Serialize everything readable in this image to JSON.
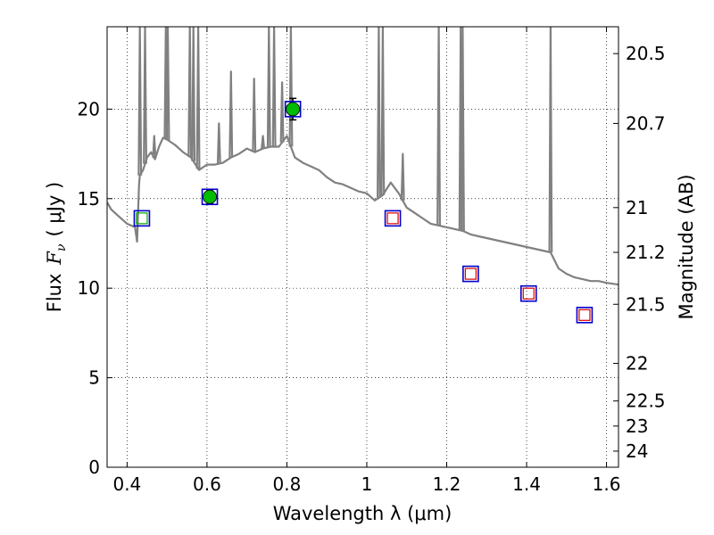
{
  "chart_data": {
    "type": "scatter",
    "xlabel": "Wavelength  λ (μm)",
    "ylabel_left_text": "Flux",
    "ylabel_left_symbol": "F",
    "ylabel_left_subscript": "ν",
    "ylabel_left_unit": "( μJy )",
    "ylabel_right": "Magnitude (AB)",
    "xlim": [
      0.35,
      1.63
    ],
    "ylim": [
      0,
      24.6
    ],
    "grid": true,
    "x_ticks": [
      {
        "value": 0.4,
        "label": "0.4"
      },
      {
        "value": 0.6,
        "label": "0.6"
      },
      {
        "value": 0.8,
        "label": "0.8"
      },
      {
        "value": 1.0,
        "label": "1"
      },
      {
        "value": 1.2,
        "label": "1.2"
      },
      {
        "value": 1.4,
        "label": "1.4"
      },
      {
        "value": 1.6,
        "label": "1.6"
      }
    ],
    "y_ticks": [
      {
        "value": 0,
        "label": "0"
      },
      {
        "value": 5,
        "label": "5"
      },
      {
        "value": 10,
        "label": "10"
      },
      {
        "value": 15,
        "label": "15"
      },
      {
        "value": 20,
        "label": "20"
      }
    ],
    "right_ticks": [
      {
        "flux": 23.1,
        "label": "20.5"
      },
      {
        "flux": 19.2,
        "label": "20.7"
      },
      {
        "flux": 14.5,
        "label": "21"
      },
      {
        "flux": 12.0,
        "label": "21.2"
      },
      {
        "flux": 9.1,
        "label": "21.5"
      },
      {
        "flux": 5.8,
        "label": "22"
      },
      {
        "flux": 3.7,
        "label": "22.5"
      },
      {
        "flux": 2.3,
        "label": "23"
      },
      {
        "flux": 0.9,
        "label": "24"
      }
    ],
    "spectrum": {
      "color": "#808080",
      "x": [
        0.35,
        0.36,
        0.38,
        0.4,
        0.42,
        0.425,
        0.43,
        0.432,
        0.44,
        0.45,
        0.46,
        0.47,
        0.48,
        0.49,
        0.5,
        0.52,
        0.54,
        0.56,
        0.58,
        0.6,
        0.62,
        0.64,
        0.66,
        0.68,
        0.7,
        0.72,
        0.74,
        0.76,
        0.78,
        0.8,
        0.82,
        0.84,
        0.86,
        0.88,
        0.9,
        0.92,
        0.94,
        0.96,
        0.98,
        1.0,
        1.02,
        1.04,
        1.06,
        1.08,
        1.1,
        1.12,
        1.14,
        1.16,
        1.18,
        1.2,
        1.22,
        1.24,
        1.26,
        1.28,
        1.3,
        1.32,
        1.34,
        1.36,
        1.38,
        1.4,
        1.42,
        1.44,
        1.46,
        1.48,
        1.5,
        1.52,
        1.54,
        1.56,
        1.58,
        1.6,
        1.63
      ],
      "y": [
        14.8,
        14.4,
        14.0,
        13.6,
        13.4,
        12.6,
        15.8,
        16.3,
        16.6,
        17.3,
        17.6,
        17.2,
        17.9,
        18.4,
        18.3,
        18.0,
        17.6,
        17.3,
        16.6,
        16.9,
        16.9,
        17.0,
        17.3,
        17.5,
        17.8,
        17.6,
        17.8,
        17.9,
        17.9,
        18.5,
        17.3,
        17.0,
        16.8,
        16.6,
        16.2,
        15.9,
        15.8,
        15.6,
        15.4,
        15.3,
        14.9,
        15.2,
        15.9,
        15.3,
        14.5,
        14.2,
        13.9,
        13.6,
        13.5,
        13.4,
        13.3,
        13.2,
        13.0,
        12.9,
        12.8,
        12.7,
        12.6,
        12.5,
        12.4,
        12.3,
        12.2,
        12.1,
        12.0,
        11.1,
        10.8,
        10.6,
        10.5,
        10.4,
        10.4,
        10.3,
        10.2
      ]
    },
    "emission_lines": [
      {
        "x": 0.432,
        "peak": 24.6
      },
      {
        "x": 0.445,
        "peak": 24.6
      },
      {
        "x": 0.462,
        "peak": 17.5
      },
      {
        "x": 0.468,
        "peak": 18.5
      },
      {
        "x": 0.497,
        "peak": 24.6
      },
      {
        "x": 0.502,
        "peak": 24.6
      },
      {
        "x": 0.557,
        "peak": 24.6
      },
      {
        "x": 0.566,
        "peak": 24.6
      },
      {
        "x": 0.578,
        "peak": 24.6
      },
      {
        "x": 0.63,
        "peak": 19.2
      },
      {
        "x": 0.66,
        "peak": 22.1
      },
      {
        "x": 0.718,
        "peak": 21.7
      },
      {
        "x": 0.74,
        "peak": 18.5
      },
      {
        "x": 0.755,
        "peak": 24.6
      },
      {
        "x": 0.768,
        "peak": 24.6
      },
      {
        "x": 0.788,
        "peak": 21.5
      },
      {
        "x": 0.81,
        "peak": 24.6
      },
      {
        "x": 1.03,
        "peak": 24.6
      },
      {
        "x": 1.04,
        "peak": 24.6
      },
      {
        "x": 1.09,
        "peak": 17.5
      },
      {
        "x": 1.18,
        "peak": 24.6
      },
      {
        "x": 1.235,
        "peak": 24.6
      },
      {
        "x": 1.24,
        "peak": 24.6
      },
      {
        "x": 1.46,
        "peak": 24.6
      }
    ],
    "detections": {
      "marker": "filled circle",
      "color": "#00bb00",
      "points": [
        {
          "x": 0.607,
          "y": 15.1,
          "yerr": 0.4
        },
        {
          "x": 0.815,
          "y": 20.0,
          "yerr": 0.6
        }
      ]
    },
    "model_photometry": {
      "marker": "open square",
      "color": "#0000cc",
      "points": [
        {
          "x": 0.437,
          "y": 13.9
        },
        {
          "x": 0.607,
          "y": 15.1
        },
        {
          "x": 0.815,
          "y": 20.0
        },
        {
          "x": 1.065,
          "y": 13.9
        },
        {
          "x": 1.26,
          "y": 10.8
        },
        {
          "x": 1.405,
          "y": 9.7
        },
        {
          "x": 1.545,
          "y": 8.5
        }
      ]
    },
    "upper_limits": [
      {
        "x": 0.437,
        "y": 13.9,
        "color": "#00aa00"
      },
      {
        "x": 1.065,
        "y": 13.9,
        "color": "#dd0000"
      },
      {
        "x": 1.26,
        "y": 10.8,
        "color": "#dd0000"
      },
      {
        "x": 1.405,
        "y": 9.7,
        "color": "#dd0000"
      },
      {
        "x": 1.545,
        "y": 8.5,
        "color": "#dd0000"
      }
    ]
  }
}
